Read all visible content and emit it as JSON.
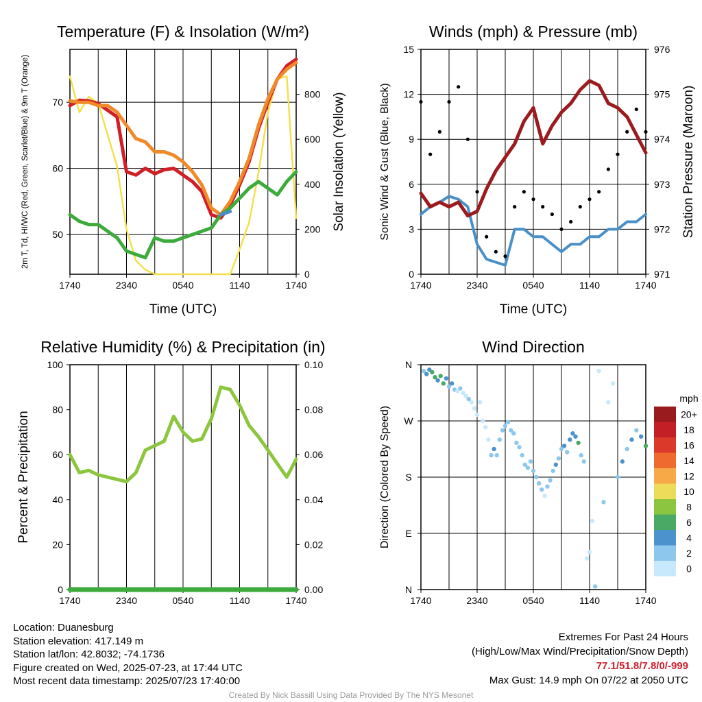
{
  "chart_data": [
    {
      "type": "line",
      "title": "Temperature (F) & Insolation (W/m²)",
      "xlabel": "Time (UTC)",
      "ylabel_left": "2m T, Td, HI/WC (Red, Green, Scarlet/Blue) & 9m T (Orange)",
      "ylabel_right": "Solar Insolation (Yellow)",
      "x_ticks": [
        "1740",
        "2340",
        "0540",
        "1140",
        "1740"
      ],
      "y_ticks_left": [
        50,
        60,
        70
      ],
      "y_ticks_right": [
        0,
        200,
        400,
        600,
        800
      ],
      "ylim_left": [
        44,
        78
      ],
      "ylim_right": [
        0,
        1000
      ],
      "x_hours": [
        0,
        1,
        2,
        3,
        4,
        5,
        6,
        7,
        8,
        9,
        10,
        11,
        12,
        13,
        14,
        15,
        16,
        17,
        18,
        19,
        20,
        21,
        22,
        23,
        24
      ],
      "series": [
        {
          "name": "2m T",
          "color": "#d01f27",
          "axis": "left",
          "values": [
            69.5,
            70.3,
            70.2,
            69.8,
            68.8,
            67.8,
            59.5,
            59.0,
            60.0,
            59.2,
            59.8,
            60.0,
            59.0,
            58.0,
            56.5,
            53.0,
            52.5,
            54.5,
            57.5,
            61.0,
            66.0,
            70.0,
            73.5,
            75.5,
            76.5
          ]
        },
        {
          "name": "9m T",
          "color": "#f08a28",
          "axis": "left",
          "values": [
            70.2,
            70.0,
            70.0,
            69.5,
            69.5,
            68.5,
            66.5,
            64.5,
            64.0,
            62.5,
            62.5,
            62.0,
            61.0,
            59.5,
            57.5,
            54.0,
            53.0,
            55.0,
            58.0,
            61.5,
            66.5,
            70.5,
            73.5,
            75.0,
            76.0
          ]
        },
        {
          "name": "Td",
          "color": "#3cab3c",
          "axis": "left",
          "values": [
            53.0,
            52.0,
            51.5,
            51.5,
            50.5,
            49.5,
            47.5,
            47.0,
            46.5,
            49.5,
            49.0,
            49.0,
            49.5,
            50.0,
            50.5,
            51.0,
            53.0,
            54.0,
            55.5,
            57.0,
            58.0,
            57.0,
            56.0,
            58.0,
            59.5
          ]
        },
        {
          "name": "HI/WC",
          "color": "#4a8cc8",
          "axis": "left",
          "values": [
            null,
            null,
            null,
            null,
            null,
            null,
            null,
            null,
            null,
            null,
            null,
            null,
            null,
            null,
            null,
            null,
            53.0,
            53.5,
            null,
            null,
            null,
            null,
            null,
            null,
            null
          ]
        },
        {
          "name": "Solar Insolation",
          "color": "#f4e04d",
          "axis": "right",
          "values": [
            880,
            720,
            790,
            760,
            620,
            480,
            200,
            60,
            20,
            0,
            0,
            0,
            0,
            0,
            0,
            0,
            0,
            0,
            110,
            230,
            450,
            720,
            870,
            880,
            250
          ]
        }
      ]
    },
    {
      "type": "line",
      "title": "Winds (mph) & Pressure (mb)",
      "xlabel": "Time (UTC)",
      "ylabel_left": "Sonic Wind & Gust (Blue, Black)",
      "ylabel_right": "Station Pressure (Maroon)",
      "x_ticks": [
        "1740",
        "2340",
        "0540",
        "1140",
        "1740"
      ],
      "y_ticks_left": [
        0,
        3,
        6,
        9,
        12,
        15
      ],
      "y_ticks_right": [
        971,
        972,
        973,
        974,
        975,
        976
      ],
      "ylim_left": [
        0,
        15
      ],
      "ylim_right": [
        971,
        976
      ],
      "x_hours": [
        0,
        1,
        2,
        3,
        4,
        5,
        6,
        7,
        8,
        9,
        10,
        11,
        12,
        13,
        14,
        15,
        16,
        17,
        18,
        19,
        20,
        21,
        22,
        23,
        24
      ],
      "series": [
        {
          "name": "Sonic Wind",
          "color": "#4a90c8",
          "axis": "left",
          "values": [
            4.0,
            4.5,
            4.8,
            5.2,
            5.0,
            4.5,
            2.0,
            1.0,
            0.8,
            0.6,
            3.0,
            3.0,
            2.5,
            2.5,
            2.0,
            1.5,
            2.0,
            2.0,
            2.5,
            2.5,
            3.0,
            3.0,
            3.5,
            3.5,
            4.0
          ]
        },
        {
          "name": "Gust",
          "color": "#000000",
          "axis": "left",
          "marker": "point",
          "values": [
            11.5,
            8.0,
            9.5,
            11.5,
            12.5,
            9.0,
            5.5,
            2.5,
            1.5,
            1.2,
            4.5,
            5.5,
            5.0,
            4.5,
            4.0,
            3.0,
            3.5,
            4.5,
            5.0,
            5.5,
            7.0,
            8.0,
            9.5,
            11.0,
            9.5
          ]
        },
        {
          "name": "Station Pressure",
          "color": "#9b1b1f",
          "axis": "right",
          "values": [
            972.8,
            972.5,
            972.6,
            972.5,
            972.6,
            972.3,
            972.4,
            972.9,
            973.3,
            973.6,
            973.9,
            974.4,
            974.7,
            973.9,
            974.3,
            974.6,
            974.8,
            975.1,
            975.3,
            975.2,
            974.8,
            974.7,
            974.5,
            974.1,
            973.7
          ]
        }
      ]
    },
    {
      "type": "line",
      "title": "Relative Humidity (%) & Precipitation (in)",
      "xlabel": "",
      "ylabel": "Percent & Precipitation",
      "x_ticks": [
        "1740",
        "2340",
        "0540",
        "1140",
        "1740"
      ],
      "y_ticks_left": [
        0,
        20,
        40,
        60,
        80,
        100
      ],
      "y_ticks_right": [
        "0.00",
        "0.02",
        "0.04",
        "0.06",
        "0.08",
        "0.10"
      ],
      "ylim_left": [
        0,
        100
      ],
      "ylim_right": [
        0,
        0.1
      ],
      "x_hours": [
        0,
        1,
        2,
        3,
        4,
        5,
        6,
        7,
        8,
        9,
        10,
        11,
        12,
        13,
        14,
        15,
        16,
        17,
        18,
        19,
        20,
        21,
        22,
        23,
        24
      ],
      "series": [
        {
          "name": "Relative Humidity",
          "color": "#8cc63f",
          "axis": "left",
          "values": [
            60,
            52,
            53,
            51,
            50,
            49,
            48,
            52,
            62,
            64,
            66,
            77,
            70,
            66,
            67,
            76,
            90,
            89,
            82,
            73,
            68,
            62,
            56,
            50,
            58
          ]
        },
        {
          "name": "Precipitation",
          "color": "#3cab3c",
          "axis": "right",
          "values": [
            0,
            0,
            0,
            0,
            0,
            0,
            0,
            0,
            0,
            0,
            0,
            0,
            0,
            0,
            0,
            0,
            0,
            0,
            0,
            0,
            0,
            0,
            0,
            0,
            0
          ]
        }
      ]
    },
    {
      "type": "scatter",
      "title": "Wind Direction",
      "ylabel": "Direction (Colored By Speed)",
      "x_ticks": [
        "1740",
        "2340",
        "0540",
        "1140",
        "1740"
      ],
      "y_ticks": [
        "N",
        "E",
        "S",
        "W",
        "N"
      ],
      "ylim": [
        0,
        360
      ],
      "colorbar_unit": "mph",
      "colorbar_labels": [
        "0",
        "2",
        "4",
        "6",
        "8",
        "10",
        "12",
        "14",
        "16",
        "18",
        "20+"
      ],
      "colorbar_colors": [
        "#c8e9fb",
        "#8ec7ee",
        "#4c92cd",
        "#4aa964",
        "#8cc640",
        "#eddc5a",
        "#f7a948",
        "#ee6b2d",
        "#db3a2a",
        "#c31f26",
        "#9a1b1e"
      ],
      "points": [
        {
          "x": 0.3,
          "dir": 350,
          "spd": 3
        },
        {
          "x": 0.6,
          "dir": 345,
          "spd": 5
        },
        {
          "x": 0.9,
          "dir": 352,
          "spd": 4
        },
        {
          "x": 1.2,
          "dir": 348,
          "spd": 6
        },
        {
          "x": 1.5,
          "dir": 340,
          "spd": 7
        },
        {
          "x": 1.8,
          "dir": 335,
          "spd": 5
        },
        {
          "x": 2.1,
          "dir": 342,
          "spd": 6
        },
        {
          "x": 2.4,
          "dir": 330,
          "spd": 7
        },
        {
          "x": 2.7,
          "dir": 338,
          "spd": 4
        },
        {
          "x": 3.0,
          "dir": 325,
          "spd": 3
        },
        {
          "x": 3.3,
          "dir": 330,
          "spd": 5
        },
        {
          "x": 3.6,
          "dir": 320,
          "spd": 2
        },
        {
          "x": 3.9,
          "dir": 318,
          "spd": 1
        },
        {
          "x": 4.2,
          "dir": 322,
          "spd": 2
        },
        {
          "x": 4.5,
          "dir": 315,
          "spd": 1
        },
        {
          "x": 4.8,
          "dir": 310,
          "spd": 1
        },
        {
          "x": 5.1,
          "dir": 305,
          "spd": 2
        },
        {
          "x": 5.4,
          "dir": 300,
          "spd": 1
        },
        {
          "x": 5.7,
          "dir": 290,
          "spd": 1
        },
        {
          "x": 6.0,
          "dir": 280,
          "spd": 0
        },
        {
          "x": 6.3,
          "dir": 300,
          "spd": 1
        },
        {
          "x": 6.6,
          "dir": 270,
          "spd": 0
        },
        {
          "x": 6.9,
          "dir": 260,
          "spd": 1
        },
        {
          "x": 7.2,
          "dir": 240,
          "spd": 1
        },
        {
          "x": 7.5,
          "dir": 215,
          "spd": 3
        },
        {
          "x": 7.8,
          "dir": 225,
          "spd": 4
        },
        {
          "x": 8.1,
          "dir": 215,
          "spd": 2
        },
        {
          "x": 8.4,
          "dir": 240,
          "spd": 2
        },
        {
          "x": 8.7,
          "dir": 255,
          "spd": 2
        },
        {
          "x": 9.0,
          "dir": 262,
          "spd": 3
        },
        {
          "x": 9.3,
          "dir": 268,
          "spd": 2
        },
        {
          "x": 9.6,
          "dir": 255,
          "spd": 3
        },
        {
          "x": 9.9,
          "dir": 250,
          "spd": 2
        },
        {
          "x": 10.2,
          "dir": 235,
          "spd": 2
        },
        {
          "x": 10.5,
          "dir": 228,
          "spd": 3
        },
        {
          "x": 10.8,
          "dir": 215,
          "spd": 2
        },
        {
          "x": 11.1,
          "dir": 200,
          "spd": 3
        },
        {
          "x": 11.4,
          "dir": 195,
          "spd": 2
        },
        {
          "x": 11.7,
          "dir": 205,
          "spd": 3
        },
        {
          "x": 12.0,
          "dir": 190,
          "spd": 2
        },
        {
          "x": 12.3,
          "dir": 180,
          "spd": 2
        },
        {
          "x": 12.6,
          "dir": 170,
          "spd": 3
        },
        {
          "x": 12.9,
          "dir": 160,
          "spd": 2
        },
        {
          "x": 13.2,
          "dir": 150,
          "spd": 1
        },
        {
          "x": 13.5,
          "dir": 165,
          "spd": 2
        },
        {
          "x": 13.8,
          "dir": 175,
          "spd": 3
        },
        {
          "x": 14.1,
          "dir": 190,
          "spd": 3
        },
        {
          "x": 14.4,
          "dir": 200,
          "spd": 4
        },
        {
          "x": 14.7,
          "dir": 210,
          "spd": 3
        },
        {
          "x": 15.0,
          "dir": 225,
          "spd": 3
        },
        {
          "x": 15.3,
          "dir": 230,
          "spd": 4
        },
        {
          "x": 15.6,
          "dir": 220,
          "spd": 3
        },
        {
          "x": 15.9,
          "dir": 240,
          "spd": 4
        },
        {
          "x": 16.2,
          "dir": 250,
          "spd": 4
        },
        {
          "x": 16.5,
          "dir": 245,
          "spd": 4
        },
        {
          "x": 16.8,
          "dir": 235,
          "spd": 6
        },
        {
          "x": 17.1,
          "dir": 215,
          "spd": 3
        },
        {
          "x": 17.4,
          "dir": 205,
          "spd": 3
        },
        {
          "x": 17.7,
          "dir": 50,
          "spd": 1
        },
        {
          "x": 18.0,
          "dir": 60,
          "spd": 1
        },
        {
          "x": 18.3,
          "dir": 110,
          "spd": 1
        },
        {
          "x": 18.6,
          "dir": 5,
          "spd": 2
        },
        {
          "x": 19.0,
          "dir": 350,
          "spd": 1
        },
        {
          "x": 19.5,
          "dir": 140,
          "spd": 2
        },
        {
          "x": 20.0,
          "dir": 300,
          "spd": 1
        },
        {
          "x": 20.5,
          "dir": 330,
          "spd": 1
        },
        {
          "x": 21.0,
          "dir": 180,
          "spd": 3
        },
        {
          "x": 21.5,
          "dir": 205,
          "spd": 4
        },
        {
          "x": 22.0,
          "dir": 225,
          "spd": 3
        },
        {
          "x": 22.5,
          "dir": 240,
          "spd": 4
        },
        {
          "x": 23.0,
          "dir": 255,
          "spd": 3
        },
        {
          "x": 23.5,
          "dir": 245,
          "spd": 4
        },
        {
          "x": 24.0,
          "dir": 230,
          "spd": 6
        }
      ]
    }
  ],
  "footer": {
    "location": "Location: Duanesburg",
    "elevation": "Station elevation: 417.149 m",
    "latlon": "Station lat/lon: 42.8032; -74.1736",
    "created": "Figure created on Wed, 2025-07-23, at 17:44 UTC",
    "recent": "Most recent data timestamp: 2025/07/23 17:40:00",
    "extremes_title": "Extremes For Past 24 Hours",
    "extremes_sub": "(High/Low/Max Wind/Precipitation/Snow Depth)",
    "extremes_values": "77.1/51.8/7.8/0/-999",
    "max_gust": "Max Gust: 14.9 mph On 07/22 at 2050 UTC",
    "credit": "Created By Nick Bassill Using Data Provided By The NYS Mesonet"
  }
}
